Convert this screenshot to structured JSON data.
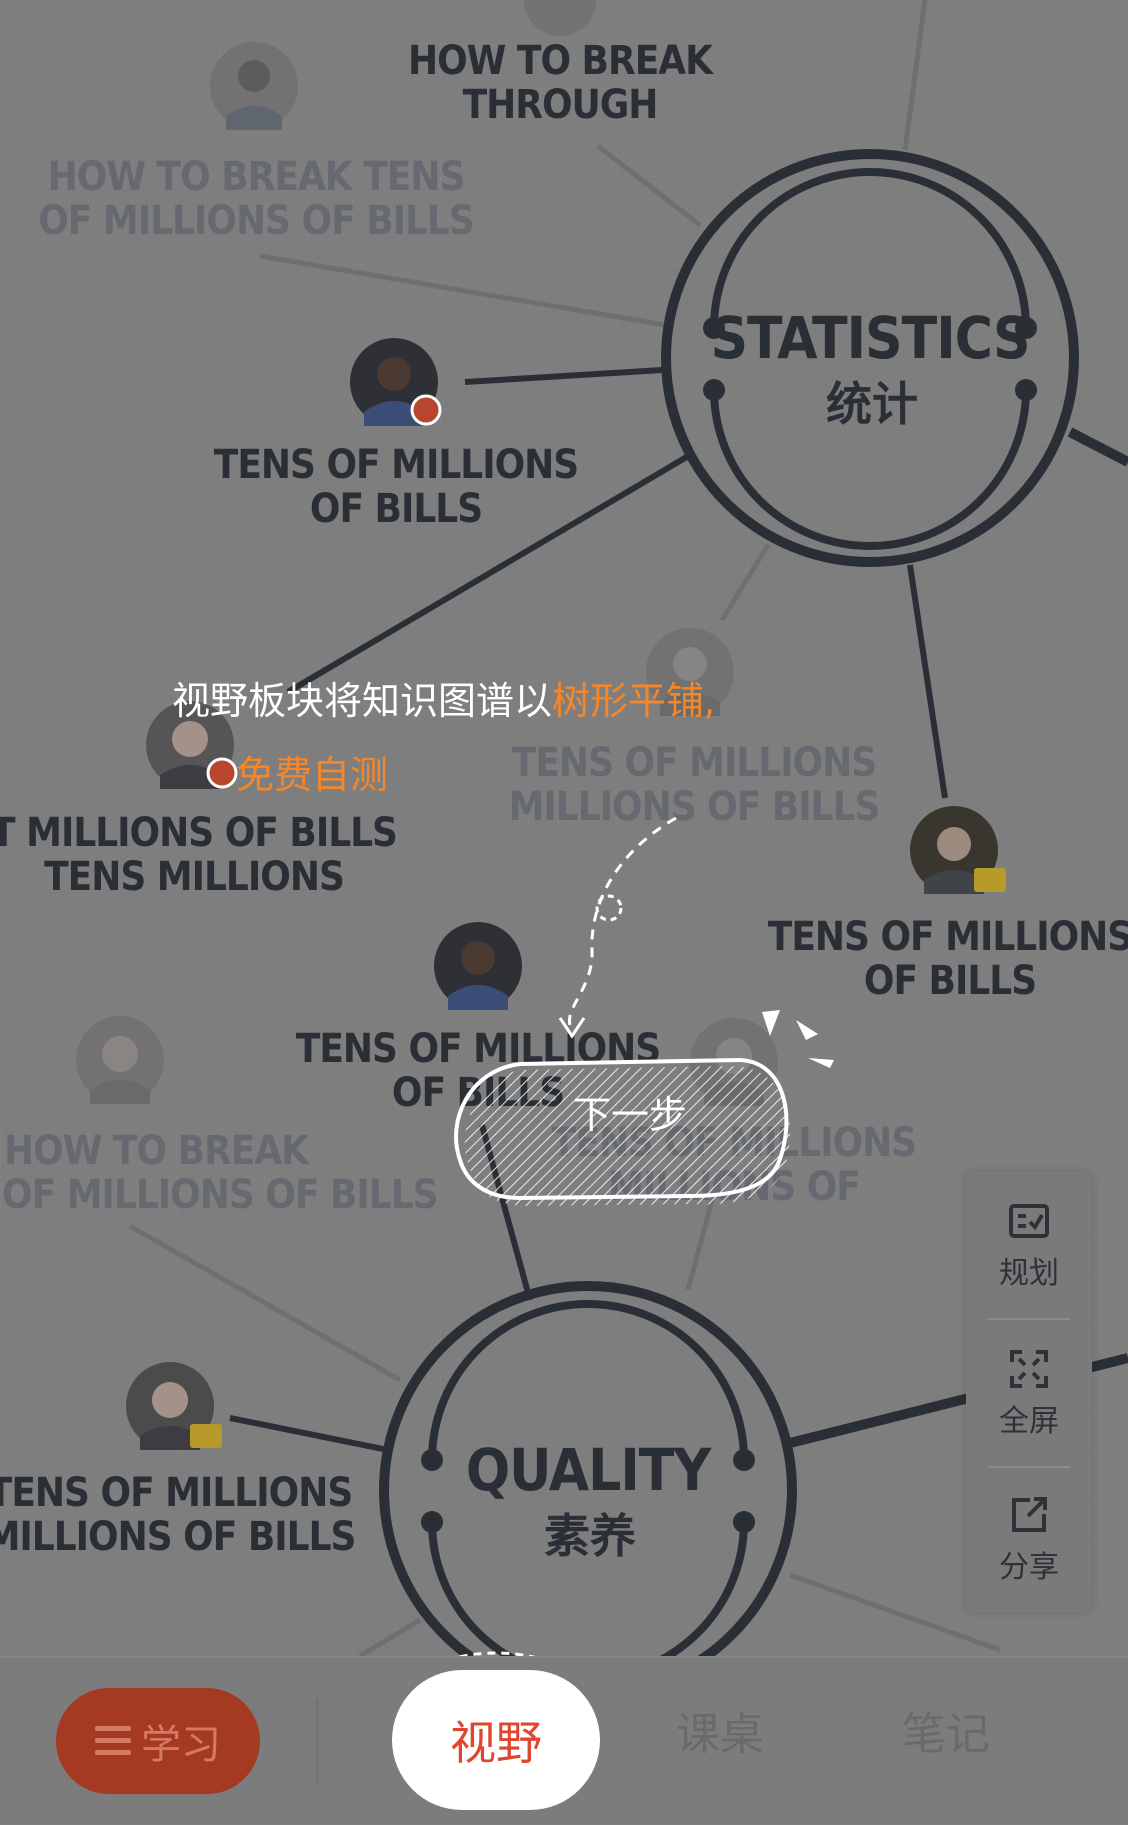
{
  "hubs": [
    {
      "id": "statistics",
      "en": "STATISTICS",
      "zh": "统计"
    },
    {
      "id": "quality",
      "en": "QUALITY",
      "zh": "素养"
    }
  ],
  "nodes": [
    {
      "lines": [
        "HOW TO BREAK",
        "THROUGH"
      ],
      "dim": false
    },
    {
      "lines": [
        "HOW TO BREAK TENS",
        "OF MILLIONS OF BILLS"
      ],
      "dim": true
    },
    {
      "lines": [
        "TENS OF MILLIONS",
        "OF BILLS"
      ],
      "dim": false
    },
    {
      "lines": [
        "T MILLIONS OF BILLS",
        "TENS MILLIONS"
      ],
      "dim": false
    },
    {
      "lines": [
        "TENS OF MILLIONS",
        "MILLIONS OF BILLS"
      ],
      "dim": true
    },
    {
      "lines": [
        "TENS OF MILLIONS",
        "OF BILLS"
      ],
      "dim": false
    },
    {
      "lines": [
        "TENS OF MILLIONS",
        "OF BILLS"
      ],
      "dim": false
    },
    {
      "lines": [
        "HOW TO BREAK",
        "OF MILLIONS OF BILLS"
      ],
      "dim": true
    },
    {
      "lines": [
        "TENS OF MILLIONS",
        "MILLIONS OF"
      ],
      "dim": true
    },
    {
      "lines": [
        "TENS OF MILLIONS",
        "MILLIONS OF BILLS"
      ],
      "dim": false
    }
  ],
  "guide": {
    "line1_plain": "视野板块将知识图谱以",
    "line1_highlight": "树形平铺,",
    "line2_highlight": "免费自测",
    "next_step": "下一步"
  },
  "toolbar": {
    "plan": {
      "label": "规划",
      "icon": "plan-checklist-icon"
    },
    "fullscreen": {
      "label": "全屏",
      "icon": "fullscreen-icon"
    },
    "share": {
      "label": "分享",
      "icon": "share-icon"
    }
  },
  "bottom_nav": {
    "study_label": "学习",
    "tabs": [
      "视野",
      "课桌",
      "笔记"
    ],
    "active_tab": "视野"
  },
  "colors": {
    "overlay_bg": "#7e7e7e",
    "hub_stroke": "#2a2f36",
    "highlight": "#f5872a",
    "active_tab_text": "#e0452f",
    "study_button": "#a33a21",
    "badge_red": "#b8452d",
    "badge_gold": "#b89a2a"
  }
}
